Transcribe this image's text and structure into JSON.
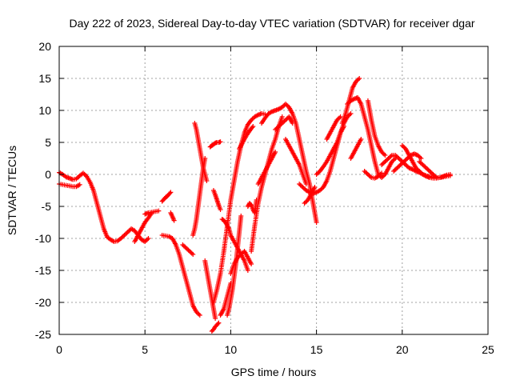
{
  "chart_data": {
    "type": "scatter",
    "title": "Day 222 of 2023, Sidereal Day-to-day VTEC variation (SDTVAR) for receiver dgar",
    "xlabel": "GPS time / hours",
    "ylabel": "SDTVAR / TECUs",
    "xlim": [
      0,
      25
    ],
    "ylim": [
      -25,
      20
    ],
    "xticks": [
      0,
      5,
      10,
      15,
      20,
      25
    ],
    "yticks": [
      -25,
      -20,
      -15,
      -10,
      -5,
      0,
      5,
      10,
      15,
      20
    ],
    "grid": true,
    "legend": "none",
    "marker": "plus",
    "color": "#ff0000",
    "series": [
      {
        "x": [
          0.0,
          0.2,
          0.4,
          0.6,
          0.8,
          1.0,
          1.2,
          1.4,
          1.6,
          1.8,
          2.0,
          2.2,
          2.4,
          2.6,
          2.8,
          3.0,
          3.2,
          3.4,
          3.6,
          3.8,
          4.0,
          4.2,
          4.4,
          4.6,
          4.8,
          5.0,
          5.2
        ],
        "y": [
          0.3,
          0.0,
          -0.4,
          -0.6,
          -0.8,
          -0.7,
          -0.2,
          0.2,
          -0.3,
          -1.2,
          -2.5,
          -4.5,
          -6.5,
          -8.5,
          -9.8,
          -10.2,
          -10.5,
          -10.4,
          -10.0,
          -9.5,
          -9.0,
          -8.5,
          -8.8,
          -9.5,
          -10.2,
          -10.5,
          -10.0
        ]
      },
      {
        "x": [
          0.0,
          0.2,
          0.4,
          0.6,
          0.8,
          1.0,
          1.2
        ],
        "y": [
          -1.5,
          -1.6,
          -1.7,
          -1.8,
          -1.9,
          -1.9,
          -1.6
        ]
      },
      {
        "x": [
          4.4,
          4.6,
          4.8,
          5.0,
          5.2,
          5.4
        ],
        "y": [
          -10.5,
          -9.5,
          -8.5,
          -7.5,
          -6.8,
          -6.0
        ]
      },
      {
        "x": [
          5.0,
          5.2,
          5.4,
          5.6,
          5.8
        ],
        "y": [
          -6.2,
          -6.0,
          -5.9,
          -5.8,
          -5.7
        ]
      },
      {
        "x": [
          6.0,
          6.2,
          6.4,
          6.6,
          6.8,
          7.0,
          7.2,
          7.4,
          7.6,
          7.8,
          8.0,
          8.2
        ],
        "y": [
          -9.5,
          -9.6,
          -9.7,
          -10.0,
          -11.0,
          -12.5,
          -14.5,
          -16.5,
          -18.5,
          -20.5,
          -21.5,
          -22.0
        ]
      },
      {
        "x": [
          6.0,
          6.1,
          6.2,
          6.3,
          6.4,
          6.5
        ],
        "y": [
          -4.2,
          -3.9,
          -3.6,
          -3.4,
          -3.1,
          -2.8
        ]
      },
      {
        "x": [
          6.5,
          6.6,
          6.7
        ],
        "y": [
          -6.0,
          -6.6,
          -7.2
        ]
      },
      {
        "x": [
          7.2,
          7.4,
          7.6,
          7.8
        ],
        "y": [
          -11.0,
          -11.5,
          -12.0,
          -12.5
        ]
      },
      {
        "x": [
          7.8,
          7.9,
          8.0,
          8.1,
          8.2,
          8.3,
          8.4,
          8.5
        ],
        "y": [
          -9.5,
          -8.5,
          -7.0,
          -5.0,
          -3.0,
          -1.0,
          1.0,
          2.5
        ]
      },
      {
        "x": [
          7.9,
          8.0,
          8.1,
          8.2,
          8.3,
          8.4,
          8.5,
          8.6
        ],
        "y": [
          8.0,
          7.0,
          5.5,
          4.0,
          2.5,
          1.0,
          0.0,
          -1.0
        ]
      },
      {
        "x": [
          8.5,
          8.6,
          8.7,
          8.8,
          8.9,
          9.0,
          9.1
        ],
        "y": [
          -13.5,
          -15.0,
          -16.5,
          -18.0,
          -19.5,
          -21.0,
          -22.5
        ]
      },
      {
        "x": [
          8.8,
          8.9,
          9.0,
          9.1,
          9.2,
          9.3,
          9.4
        ],
        "y": [
          4.3,
          4.5,
          4.7,
          4.9,
          5.0,
          5.0,
          5.1
        ]
      },
      {
        "x": [
          9.0,
          9.1,
          9.2,
          9.3,
          9.4
        ],
        "y": [
          -2.5,
          -3.2,
          -4.0,
          -4.8,
          -5.5
        ]
      },
      {
        "x": [
          8.9,
          9.0,
          9.1,
          9.2,
          9.3
        ],
        "y": [
          -24.5,
          -24.2,
          -23.8,
          -23.5,
          -23.2
        ]
      },
      {
        "x": [
          9.0,
          9.2,
          9.4,
          9.6,
          9.8,
          10.0,
          10.2,
          10.4,
          10.6,
          10.8,
          11.0,
          11.2,
          11.4,
          11.6,
          11.8,
          12.0
        ],
        "y": [
          -20.0,
          -18.0,
          -15.5,
          -12.0,
          -8.0,
          -4.0,
          -1.0,
          2.0,
          4.5,
          6.5,
          7.8,
          8.5,
          9.0,
          9.3,
          9.5,
          9.4
        ]
      },
      {
        "x": [
          9.4,
          9.5,
          9.6,
          9.7,
          9.8,
          9.9,
          10.0
        ],
        "y": [
          -22.0,
          -21.5,
          -21.0,
          -20.0,
          -19.0,
          -18.0,
          -17.0
        ]
      },
      {
        "x": [
          9.5,
          9.6,
          9.7,
          9.8,
          9.9,
          10.0,
          10.2,
          10.4,
          10.6,
          10.8,
          11.0
        ],
        "y": [
          -7.0,
          -7.2,
          -7.5,
          -8.0,
          -8.5,
          -9.5,
          -10.5,
          -11.5,
          -12.5,
          -13.5,
          -15.0
        ]
      },
      {
        "x": [
          9.8,
          9.9,
          10.0,
          10.1,
          10.2,
          10.3,
          10.4,
          10.5,
          10.6
        ],
        "y": [
          -22.0,
          -21.0,
          -19.5,
          -18.0,
          -16.0,
          -14.0,
          -11.5,
          -9.0,
          -6.5
        ]
      },
      {
        "x": [
          10.0,
          10.2,
          10.4,
          10.6,
          10.8,
          11.0,
          11.2
        ],
        "y": [
          -15.5,
          -14.0,
          -13.0,
          -12.5,
          -12.0,
          -13.0,
          -14.0
        ]
      },
      {
        "x": [
          10.5,
          10.7,
          10.9,
          11.1,
          11.3
        ],
        "y": [
          4.0,
          5.0,
          6.0,
          6.8,
          7.5
        ]
      },
      {
        "x": [
          11.0,
          11.1,
          11.2,
          11.3,
          11.4,
          11.5
        ],
        "y": [
          -5.0,
          -4.5,
          -4.8,
          -5.5,
          -6.0,
          -4.0
        ]
      },
      {
        "x": [
          11.2,
          11.4,
          11.6,
          11.8,
          12.0,
          12.2,
          12.4,
          12.6,
          12.8,
          13.0
        ],
        "y": [
          -12.0,
          -8.0,
          -4.5,
          -2.0,
          0.0,
          2.0,
          4.0,
          5.5,
          7.5,
          9.0
        ]
      },
      {
        "x": [
          11.6,
          11.8,
          12.0,
          12.2,
          12.4,
          12.6
        ],
        "y": [
          -1.5,
          -0.5,
          0.5,
          1.5,
          2.5,
          3.5
        ]
      },
      {
        "x": [
          11.8,
          12.0,
          12.2,
          12.4,
          12.6,
          12.8,
          13.0,
          13.2,
          13.4,
          13.6,
          13.8,
          14.0,
          14.2,
          14.4,
          14.6,
          14.8,
          15.0
        ],
        "y": [
          8.0,
          8.8,
          9.5,
          9.8,
          10.0,
          10.2,
          10.5,
          11.0,
          10.5,
          9.5,
          8.0,
          5.5,
          3.0,
          0.5,
          -1.5,
          -4.5,
          -7.5
        ]
      },
      {
        "x": [
          12.6,
          12.8,
          13.0,
          13.2,
          13.4,
          13.6
        ],
        "y": [
          7.0,
          7.5,
          8.0,
          8.5,
          9.0,
          8.0
        ]
      },
      {
        "x": [
          13.2,
          13.4,
          13.6,
          13.8,
          14.0,
          14.2,
          14.4
        ],
        "y": [
          5.5,
          4.5,
          3.5,
          2.5,
          1.5,
          0.0,
          -1.5
        ]
      },
      {
        "x": [
          14.0,
          14.2,
          14.4,
          14.6,
          14.8,
          15.0,
          15.2,
          15.4,
          15.6,
          15.8,
          16.0,
          16.2,
          16.4,
          16.6,
          16.8,
          17.0
        ],
        "y": [
          -1.5,
          -2.0,
          -2.5,
          -2.8,
          -3.0,
          -2.8,
          -2.5,
          -2.0,
          -1.0,
          0.5,
          2.5,
          4.5,
          6.5,
          8.0,
          9.0,
          9.5
        ]
      },
      {
        "x": [
          14.3,
          14.5,
          14.7,
          14.9
        ],
        "y": [
          -4.5,
          -4.0,
          -3.0,
          -2.0
        ]
      },
      {
        "x": [
          15.0,
          15.2,
          15.4,
          15.6,
          15.8,
          16.0,
          16.2,
          16.4,
          16.6
        ],
        "y": [
          0.0,
          0.5,
          1.2,
          2.0,
          3.0,
          4.0,
          5.0,
          6.5,
          7.5
        ]
      },
      {
        "x": [
          15.6,
          15.8,
          16.0,
          16.2,
          16.4
        ],
        "y": [
          5.5,
          6.5,
          7.5,
          8.5,
          9.0
        ]
      },
      {
        "x": [
          16.5,
          16.7,
          16.9,
          17.1,
          17.3,
          17.5
        ],
        "y": [
          8.0,
          9.5,
          11.5,
          13.5,
          14.5,
          15.0
        ]
      },
      {
        "x": [
          17.0,
          17.2,
          17.4,
          17.6
        ],
        "y": [
          2.5,
          3.5,
          4.5,
          5.5
        ]
      },
      {
        "x": [
          16.8,
          17.0,
          17.2,
          17.4,
          17.6,
          17.8,
          18.0,
          18.2,
          18.4,
          18.6,
          18.8,
          19.0,
          19.2,
          19.4,
          19.6
        ],
        "y": [
          11.0,
          11.5,
          11.8,
          12.0,
          11.0,
          9.0,
          7.0,
          4.5,
          2.0,
          0.0,
          -0.5,
          0.0,
          1.0,
          2.0,
          2.5
        ]
      },
      {
        "x": [
          17.8,
          18.0,
          18.2,
          18.4,
          18.6,
          18.8
        ],
        "y": [
          0.5,
          0.0,
          -0.5,
          -0.6,
          -0.3,
          0.2
        ]
      },
      {
        "x": [
          18.0,
          18.2,
          18.4,
          18.6,
          18.8,
          19.0
        ],
        "y": [
          11.5,
          8.5,
          6.0,
          4.5,
          3.5,
          3.0
        ]
      },
      {
        "x": [
          18.8,
          19.0,
          19.2,
          19.4,
          19.6,
          19.8,
          20.0,
          20.2,
          20.4,
          20.6,
          20.8,
          21.0,
          21.2,
          21.4,
          21.6,
          21.8,
          22.0,
          22.2,
          22.4,
          22.6,
          22.8
        ],
        "y": [
          1.5,
          2.0,
          2.5,
          3.0,
          3.0,
          2.5,
          2.0,
          1.5,
          1.0,
          0.8,
          0.5,
          0.3,
          0.0,
          -0.2,
          -0.3,
          -0.4,
          -0.5,
          -0.5,
          -0.4,
          -0.3,
          -0.2
        ]
      },
      {
        "x": [
          19.5,
          19.7,
          19.9,
          20.1,
          20.3,
          20.5,
          20.7,
          20.9,
          21.1
        ],
        "y": [
          0.5,
          1.0,
          1.5,
          2.0,
          2.5,
          3.0,
          3.2,
          3.0,
          2.5
        ]
      },
      {
        "x": [
          20.0,
          20.2,
          20.4,
          20.6,
          20.8,
          21.0,
          21.2,
          21.4,
          21.6,
          21.8,
          22.0,
          22.2,
          22.4,
          22.6,
          22.8
        ],
        "y": [
          4.5,
          4.0,
          3.0,
          2.0,
          1.0,
          0.5,
          0.0,
          -0.3,
          -0.5,
          -0.6,
          -0.6,
          -0.5,
          -0.3,
          -0.1,
          0.0
        ]
      },
      {
        "x": [
          21.0,
          21.2,
          21.4,
          21.6,
          21.8,
          22.0
        ],
        "y": [
          2.0,
          1.5,
          1.0,
          0.5,
          0.0,
          -0.5
        ]
      }
    ]
  }
}
